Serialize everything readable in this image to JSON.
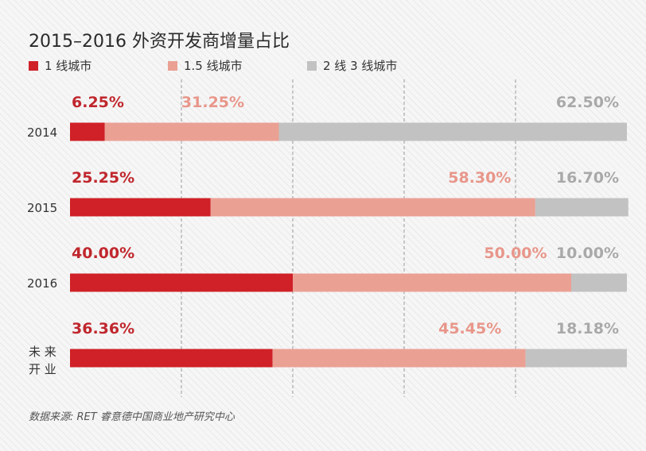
{
  "title": "2015–2016 外资开发商增量占比",
  "source": "数据来源: RET 睿意德中国商业地产研究中心",
  "colors": {
    "tier1": "#cf2127",
    "tier15": "#eba094",
    "tier23": "#c2c2c2",
    "axis_text": "#333333"
  },
  "chart_data": {
    "type": "bar",
    "stacked": "horizontal-100-percent",
    "title": "2015–2016 外资开发商增量占比",
    "categories": [
      "2014",
      "2015",
      "2016",
      "未来开业"
    ],
    "category_display": [
      [
        "2014"
      ],
      [
        "2015"
      ],
      [
        "2016"
      ],
      [
        "未 来",
        "开 业"
      ]
    ],
    "series": [
      {
        "name": "1 线城市",
        "color": "#cf2127",
        "label_color": "#c0272d",
        "values": [
          6.25,
          25.25,
          40.0,
          36.36
        ],
        "labels": [
          "6.25%",
          "25.25%",
          "40.00%",
          "36.36%"
        ]
      },
      {
        "name": "1.5 线城市",
        "color": "#eba094",
        "label_color": "#e8968a",
        "values": [
          31.25,
          58.3,
          50.0,
          45.45
        ],
        "labels": [
          "31.25%",
          "58.30%",
          "50.00%",
          "45.45%"
        ]
      },
      {
        "name": "2 线 3 线城市",
        "color": "#c2c2c2",
        "label_color": "#a9a9a9",
        "values": [
          62.5,
          16.7,
          10.0,
          18.18
        ],
        "labels": [
          "62.50%",
          "16.70%",
          "10.00%",
          "18.18%"
        ]
      }
    ],
    "xlim": [
      0,
      100
    ],
    "gridlines": [
      20,
      40,
      60,
      80
    ],
    "grid": true,
    "legend_position": "top-left"
  }
}
